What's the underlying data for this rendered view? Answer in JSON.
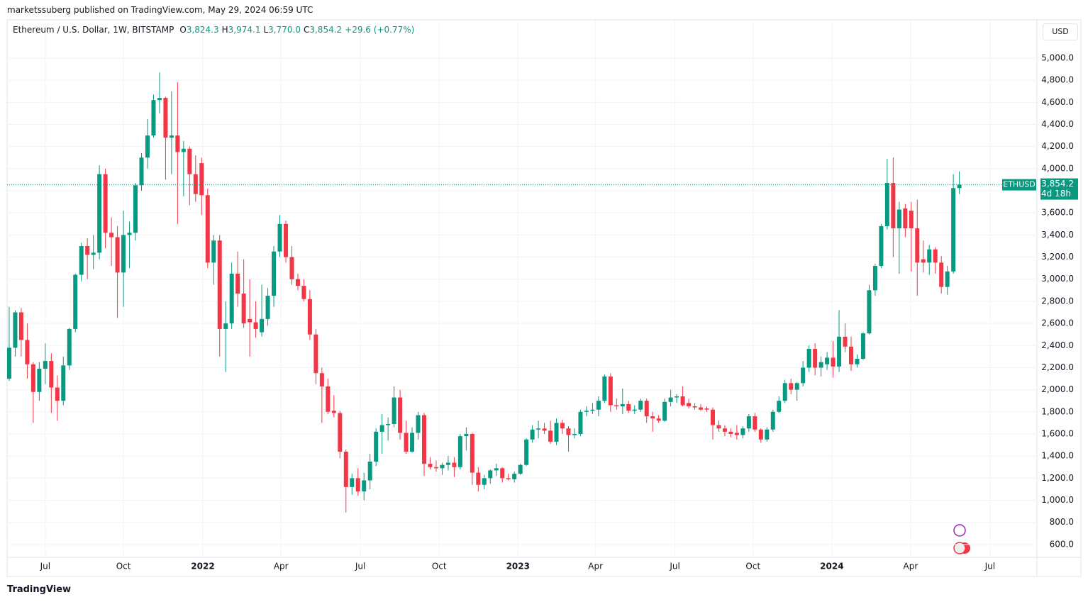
{
  "header": "marketssuberg published on TradingView.com, May 29, 2024 06:59 UTC",
  "footer": "TradingView",
  "chart_data": {
    "type": "candlestick",
    "symbol": "Ethereum / U.S. Dollar, 1W, BITSTAMP",
    "legend": [
      {
        "key": "O",
        "value": "3,824.3"
      },
      {
        "key": "H",
        "value": "3,974.1"
      },
      {
        "key": "L",
        "value": "3,770.0"
      },
      {
        "key": "C",
        "value": "3,854.2"
      }
    ],
    "change": "+29.6 (+0.77%)",
    "currency": "USD",
    "price_tag": {
      "name": "ETHUSD",
      "value": 3854.2,
      "label": "3,854.2",
      "countdown": "4d 18h"
    },
    "up_color": "#089981",
    "down_color": "#f23645",
    "grid": true,
    "ylim": [
      484,
      5346
    ],
    "yticks": [
      {
        "value": 600,
        "label": "600.0"
      },
      {
        "value": 800,
        "label": "800.0"
      },
      {
        "value": 1000,
        "label": "1,000.0"
      },
      {
        "value": 1200,
        "label": "1,200.0"
      },
      {
        "value": 1400,
        "label": "1,400.0"
      },
      {
        "value": 1600,
        "label": "1,600.0"
      },
      {
        "value": 1800,
        "label": "1,800.0"
      },
      {
        "value": 2000,
        "label": "2,000.0"
      },
      {
        "value": 2200,
        "label": "2,200.0"
      },
      {
        "value": 2400,
        "label": "2,400.0"
      },
      {
        "value": 2600,
        "label": "2,600.0"
      },
      {
        "value": 2800,
        "label": "2,800.0"
      },
      {
        "value": 3000,
        "label": "3,000.0"
      },
      {
        "value": 3200,
        "label": "3,200.0"
      },
      {
        "value": 3400,
        "label": "3,400.0"
      },
      {
        "value": 3600,
        "label": "3,600.0"
      },
      {
        "value": 3800,
        "label": "3,800.0"
      },
      {
        "value": 4000,
        "label": "4,000.0"
      },
      {
        "value": 4200,
        "label": "4,200.0"
      },
      {
        "value": 4400,
        "label": "4,400.0"
      },
      {
        "value": 4600,
        "label": "4,600.0"
      },
      {
        "value": 4800,
        "label": "4,800.0"
      },
      {
        "value": 5000,
        "label": "5,000.0"
      }
    ],
    "xlim": [
      -0.35,
      170.9
    ],
    "xticks": [
      {
        "value": 6.0,
        "label": "Jul"
      },
      {
        "value": 19.0,
        "label": "Oct"
      },
      {
        "value": 32.2,
        "label": "2022"
      },
      {
        "value": 45.2,
        "label": "Apr"
      },
      {
        "value": 58.4,
        "label": "Jul"
      },
      {
        "value": 71.5,
        "label": "Oct"
      },
      {
        "value": 84.6,
        "label": "2023"
      },
      {
        "value": 97.5,
        "label": "Apr"
      },
      {
        "value": 110.7,
        "label": "Jul"
      },
      {
        "value": 123.7,
        "label": "Oct"
      },
      {
        "value": 136.8,
        "label": "2024"
      },
      {
        "value": 149.9,
        "label": "Apr"
      },
      {
        "value": 163.1,
        "label": "Jul"
      }
    ],
    "ohlc": [
      [
        2100,
        2750,
        2080,
        2380
      ],
      [
        2380,
        2720,
        2300,
        2700
      ],
      [
        2700,
        2740,
        2300,
        2450
      ],
      [
        2450,
        2600,
        2100,
        2230
      ],
      [
        2230,
        2250,
        1700,
        1980
      ],
      [
        1980,
        2250,
        1900,
        2190
      ],
      [
        2190,
        2420,
        2050,
        2260
      ],
      [
        2260,
        2330,
        1790,
        2020
      ],
      [
        2020,
        2130,
        1720,
        1900
      ],
      [
        1900,
        2300,
        1860,
        2220
      ],
      [
        2220,
        2560,
        2180,
        2550
      ],
      [
        2550,
        3050,
        2520,
        3040
      ],
      [
        3040,
        3330,
        2980,
        3300
      ],
      [
        3300,
        3370,
        3000,
        3220
      ],
      [
        3220,
        3400,
        3090,
        3240
      ],
      [
        3240,
        4030,
        3180,
        3950
      ],
      [
        3950,
        4000,
        3280,
        3420
      ],
      [
        3420,
        3560,
        3120,
        3380
      ],
      [
        3380,
        3480,
        2650,
        3060
      ],
      [
        3060,
        3620,
        2750,
        3400
      ],
      [
        3400,
        3520,
        3100,
        3420
      ],
      [
        3420,
        3870,
        3350,
        3850
      ],
      [
        3850,
        4140,
        3800,
        4100
      ],
      [
        4100,
        4450,
        4000,
        4300
      ],
      [
        4300,
        4670,
        4280,
        4620
      ],
      [
        4620,
        4870,
        4500,
        4640
      ],
      [
        4640,
        4650,
        3900,
        4280
      ],
      [
        4280,
        4700,
        3950,
        4300
      ],
      [
        4300,
        4780,
        3500,
        4150
      ],
      [
        4150,
        4250,
        3750,
        4180
      ],
      [
        4180,
        4200,
        3670,
        3950
      ],
      [
        3950,
        4120,
        3700,
        3770
      ],
      [
        4050,
        4100,
        3580,
        3760
      ],
      [
        3760,
        3820,
        3100,
        3150
      ],
      [
        3150,
        3400,
        2950,
        3350
      ],
      [
        3350,
        3400,
        2300,
        2550
      ],
      [
        2550,
        2800,
        2160,
        2600
      ],
      [
        2600,
        3150,
        2550,
        3050
      ],
      [
        3050,
        3250,
        2750,
        2870
      ],
      [
        2870,
        3180,
        2560,
        2600
      ],
      [
        2640,
        3000,
        2300,
        2610
      ],
      [
        2610,
        2800,
        2470,
        2550
      ],
      [
        2520,
        2950,
        2480,
        2640
      ],
      [
        2640,
        2920,
        2580,
        2850
      ],
      [
        2850,
        3300,
        2750,
        3250
      ],
      [
        3250,
        3580,
        3200,
        3500
      ],
      [
        3500,
        3530,
        3150,
        3200
      ],
      [
        3200,
        3300,
        2950,
        3000
      ],
      [
        3000,
        3050,
        2900,
        2940
      ],
      [
        2940,
        3000,
        2800,
        2820
      ],
      [
        2820,
        2900,
        2450,
        2500
      ],
      [
        2500,
        2550,
        2050,
        2150
      ],
      [
        2150,
        2200,
        1700,
        2030
      ],
      [
        2030,
        2100,
        1780,
        1800
      ],
      [
        1810,
        1950,
        1750,
        1790
      ],
      [
        1790,
        1810,
        1380,
        1440
      ],
      [
        1440,
        1460,
        890,
        1120
      ],
      [
        1120,
        1240,
        1050,
        1200
      ],
      [
        1200,
        1290,
        1040,
        1080
      ],
      [
        1080,
        1250,
        1000,
        1180
      ],
      [
        1180,
        1420,
        1100,
        1350
      ],
      [
        1350,
        1650,
        1310,
        1620
      ],
      [
        1620,
        1780,
        1420,
        1680
      ],
      [
        1680,
        1750,
        1540,
        1690
      ],
      [
        1690,
        2030,
        1660,
        1930
      ],
      [
        1930,
        2000,
        1550,
        1610
      ],
      [
        1610,
        1720,
        1420,
        1440
      ],
      [
        1440,
        1660,
        1430,
        1610
      ],
      [
        1610,
        1800,
        1550,
        1770
      ],
      [
        1770,
        1790,
        1220,
        1330
      ],
      [
        1330,
        1390,
        1280,
        1300
      ],
      [
        1300,
        1360,
        1260,
        1290
      ],
      [
        1290,
        1340,
        1230,
        1320
      ],
      [
        1320,
        1400,
        1270,
        1340
      ],
      [
        1340,
        1390,
        1210,
        1300
      ],
      [
        1300,
        1600,
        1280,
        1580
      ],
      [
        1580,
        1660,
        1450,
        1600
      ],
      [
        1600,
        1610,
        1140,
        1250
      ],
      [
        1250,
        1300,
        1080,
        1140
      ],
      [
        1140,
        1230,
        1100,
        1200
      ],
      [
        1200,
        1280,
        1150,
        1270
      ],
      [
        1270,
        1330,
        1220,
        1290
      ],
      [
        1290,
        1300,
        1160,
        1200
      ],
      [
        1200,
        1240,
        1180,
        1190
      ],
      [
        1190,
        1260,
        1160,
        1240
      ],
      [
        1240,
        1330,
        1230,
        1320
      ],
      [
        1320,
        1560,
        1310,
        1550
      ],
      [
        1550,
        1680,
        1520,
        1640
      ],
      [
        1640,
        1720,
        1560,
        1650
      ],
      [
        1650,
        1700,
        1600,
        1630
      ],
      [
        1630,
        1720,
        1510,
        1530
      ],
      [
        1530,
        1740,
        1500,
        1700
      ],
      [
        1700,
        1730,
        1600,
        1650
      ],
      [
        1650,
        1670,
        1440,
        1590
      ],
      [
        1590,
        1650,
        1560,
        1600
      ],
      [
        1600,
        1820,
        1580,
        1800
      ],
      [
        1800,
        1850,
        1760,
        1810
      ],
      [
        1810,
        1880,
        1780,
        1820
      ],
      [
        1820,
        1940,
        1760,
        1900
      ],
      [
        1900,
        2140,
        1880,
        2120
      ],
      [
        2120,
        2150,
        1800,
        1860
      ],
      [
        1860,
        1920,
        1820,
        1850
      ],
      [
        1850,
        2010,
        1780,
        1870
      ],
      [
        1870,
        1900,
        1790,
        1810
      ],
      [
        1810,
        1860,
        1780,
        1820
      ],
      [
        1820,
        1920,
        1800,
        1900
      ],
      [
        1900,
        1920,
        1700,
        1760
      ],
      [
        1760,
        1800,
        1620,
        1740
      ],
      [
        1740,
        1770,
        1700,
        1720
      ],
      [
        1720,
        1920,
        1710,
        1890
      ],
      [
        1890,
        2000,
        1850,
        1930
      ],
      [
        1930,
        1960,
        1880,
        1940
      ],
      [
        1940,
        2030,
        1850,
        1860
      ],
      [
        1880,
        1920,
        1830,
        1850
      ],
      [
        1850,
        1880,
        1820,
        1840
      ],
      [
        1840,
        1870,
        1810,
        1820
      ],
      [
        1830,
        1850,
        1800,
        1820
      ],
      [
        1820,
        1840,
        1550,
        1680
      ],
      [
        1680,
        1720,
        1620,
        1650
      ],
      [
        1650,
        1680,
        1580,
        1620
      ],
      [
        1620,
        1650,
        1570,
        1600
      ],
      [
        1610,
        1680,
        1550,
        1590
      ],
      [
        1590,
        1670,
        1560,
        1650
      ],
      [
        1650,
        1780,
        1620,
        1760
      ],
      [
        1760,
        1790,
        1620,
        1640
      ],
      [
        1640,
        1650,
        1520,
        1550
      ],
      [
        1550,
        1660,
        1530,
        1640
      ],
      [
        1640,
        1820,
        1620,
        1800
      ],
      [
        1800,
        1940,
        1790,
        1900
      ],
      [
        1900,
        2090,
        1880,
        2060
      ],
      [
        2060,
        2100,
        1960,
        2000
      ],
      [
        2000,
        2070,
        1900,
        2060
      ],
      [
        2060,
        2260,
        2030,
        2200
      ],
      [
        2200,
        2400,
        2160,
        2370
      ],
      [
        2370,
        2420,
        2130,
        2200
      ],
      [
        2200,
        2300,
        2120,
        2250
      ],
      [
        2230,
        2340,
        2180,
        2290
      ],
      [
        2290,
        2440,
        2110,
        2210
      ],
      [
        2210,
        2720,
        2160,
        2480
      ],
      [
        2480,
        2600,
        2340,
        2390
      ],
      [
        2390,
        2480,
        2170,
        2230
      ],
      [
        2230,
        2320,
        2200,
        2280
      ],
      [
        2280,
        2520,
        2270,
        2510
      ],
      [
        2510,
        2950,
        2500,
        2900
      ],
      [
        2900,
        3140,
        2850,
        3120
      ],
      [
        3120,
        3500,
        3100,
        3480
      ],
      [
        3480,
        4090,
        3450,
        3870
      ],
      [
        3870,
        4100,
        3200,
        3460
      ],
      [
        3460,
        3700,
        3050,
        3630
      ],
      [
        3640,
        3680,
        3380,
        3460
      ],
      [
        3620,
        3700,
        3070,
        3460
      ],
      [
        3460,
        3720,
        2850,
        3150
      ],
      [
        3180,
        3350,
        3060,
        3150
      ],
      [
        3150,
        3310,
        3040,
        3270
      ],
      [
        3270,
        3290,
        3050,
        3150
      ],
      [
        3150,
        3210,
        2870,
        2930
      ],
      [
        2930,
        3120,
        2860,
        3070
      ],
      [
        3070,
        3950,
        3050,
        3824.3
      ],
      [
        3824.3,
        3974.1,
        3770.0,
        3854.2
      ]
    ]
  }
}
